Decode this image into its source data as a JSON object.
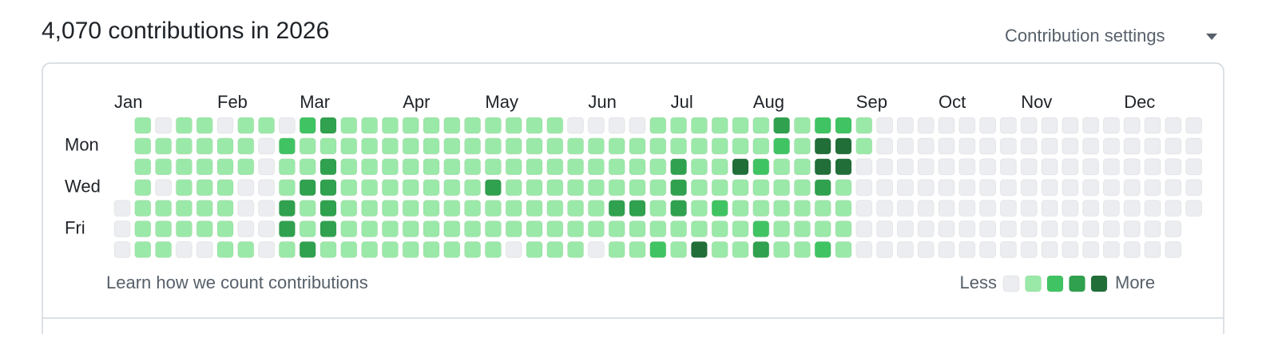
{
  "header": {
    "title": "4,070 contributions in 2026",
    "settings": "Contribution settings"
  },
  "chart_data": {
    "type": "heatmap",
    "months": [
      "Jan",
      "Feb",
      "Mar",
      "Apr",
      "May",
      "Jun",
      "Jul",
      "Aug",
      "Sep",
      "Oct",
      "Nov",
      "Dec"
    ],
    "days": [
      "Mon",
      "Wed",
      "Fri"
    ],
    "colors": [
      "#ebedf0",
      "#9be9a8",
      "#40c463",
      "#30a14e",
      "#216e39"
    ],
    "values": [
      [
        null,
        1,
        0,
        1,
        1,
        0,
        1,
        1,
        0,
        2,
        3,
        1,
        1,
        1,
        1,
        1,
        1,
        1,
        1,
        1,
        1,
        1,
        0,
        0,
        0,
        0,
        1,
        1,
        1,
        1,
        1,
        1,
        3,
        1,
        2,
        2,
        1,
        0,
        0,
        0,
        0,
        0,
        0,
        0,
        0,
        0,
        0,
        0,
        0,
        0,
        0,
        0,
        0
      ],
      [
        null,
        1,
        1,
        1,
        1,
        1,
        1,
        0,
        2,
        1,
        1,
        1,
        1,
        1,
        1,
        1,
        1,
        1,
        1,
        1,
        1,
        1,
        1,
        1,
        1,
        1,
        1,
        1,
        1,
        1,
        1,
        1,
        2,
        1,
        4,
        4,
        1,
        0,
        0,
        0,
        0,
        0,
        0,
        0,
        0,
        0,
        0,
        0,
        0,
        0,
        0,
        0,
        0
      ],
      [
        null,
        1,
        1,
        1,
        1,
        1,
        1,
        0,
        1,
        1,
        3,
        1,
        1,
        1,
        1,
        1,
        1,
        1,
        1,
        1,
        1,
        1,
        1,
        1,
        1,
        1,
        1,
        3,
        1,
        1,
        4,
        2,
        1,
        1,
        4,
        4,
        0,
        0,
        0,
        0,
        0,
        0,
        0,
        0,
        0,
        0,
        0,
        0,
        0,
        0,
        0,
        0,
        0
      ],
      [
        null,
        1,
        0,
        1,
        1,
        1,
        0,
        0,
        1,
        3,
        3,
        1,
        1,
        1,
        1,
        1,
        1,
        1,
        3,
        1,
        1,
        1,
        1,
        1,
        1,
        1,
        1,
        3,
        1,
        1,
        1,
        1,
        1,
        1,
        3,
        1,
        0,
        0,
        0,
        0,
        0,
        0,
        0,
        0,
        0,
        0,
        0,
        0,
        0,
        0,
        0,
        0,
        0
      ],
      [
        0,
        1,
        1,
        1,
        1,
        1,
        0,
        0,
        3,
        1,
        3,
        1,
        1,
        1,
        1,
        1,
        1,
        1,
        1,
        1,
        1,
        1,
        1,
        1,
        3,
        3,
        1,
        3,
        1,
        2,
        1,
        1,
        1,
        1,
        1,
        1,
        0,
        0,
        0,
        0,
        0,
        0,
        0,
        0,
        0,
        0,
        0,
        0,
        0,
        0,
        0,
        0,
        0
      ],
      [
        0,
        1,
        1,
        1,
        1,
        1,
        0,
        0,
        3,
        1,
        3,
        1,
        1,
        1,
        1,
        1,
        1,
        1,
        1,
        1,
        1,
        1,
        1,
        1,
        1,
        1,
        1,
        1,
        1,
        1,
        1,
        2,
        1,
        1,
        1,
        1,
        0,
        0,
        0,
        0,
        0,
        0,
        0,
        0,
        0,
        0,
        0,
        0,
        0,
        0,
        0,
        0,
        null
      ],
      [
        0,
        1,
        1,
        0,
        0,
        1,
        1,
        0,
        1,
        3,
        1,
        1,
        1,
        1,
        1,
        1,
        1,
        1,
        1,
        0,
        1,
        1,
        1,
        0,
        1,
        1,
        2,
        1,
        4,
        1,
        1,
        3,
        1,
        1,
        2,
        1,
        0,
        0,
        0,
        0,
        0,
        0,
        0,
        0,
        0,
        0,
        0,
        0,
        0,
        0,
        0,
        0,
        null
      ]
    ]
  },
  "footer": {
    "link": "Learn how we count contributions",
    "less": "Less",
    "more": "More"
  }
}
